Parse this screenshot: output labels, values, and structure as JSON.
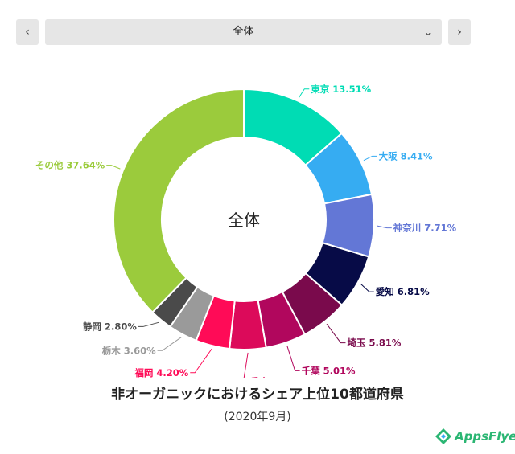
{
  "nav": {
    "prev_icon": "chevron-left-icon",
    "next_icon": "chevron-right-icon",
    "prev_glyph": "‹",
    "next_glyph": "›",
    "chevron_down_glyph": "⌄",
    "selected": "全体"
  },
  "chart_data": {
    "type": "pie",
    "donut": true,
    "center_label": "全体",
    "title": "非オーガニックにおけるシェア上位10都道府県",
    "subtitle": "(2020年9月)",
    "slices": [
      {
        "label": "東京",
        "value": 13.51,
        "display": "東京 13.51%",
        "color": "#00dcb4"
      },
      {
        "label": "大阪",
        "value": 8.41,
        "display": "大阪 8.41%",
        "color": "#36acf2"
      },
      {
        "label": "神奈川",
        "value": 7.71,
        "display": "神奈川 7.71%",
        "color": "#6377d6"
      },
      {
        "label": "愛知",
        "value": 6.81,
        "display": "愛知 6.81%",
        "color": "#070b47"
      },
      {
        "label": "埼玉",
        "value": 5.81,
        "display": "埼玉 5.81%",
        "color": "#7a0a4c"
      },
      {
        "label": "千葉",
        "value": 5.01,
        "display": "千葉 5.01%",
        "color": "#b1075d"
      },
      {
        "label": "兵庫",
        "value": 4.5,
        "display": "兵庫 4.50%",
        "color": "#dc0a5a"
      },
      {
        "label": "福岡",
        "value": 4.2,
        "display": "福岡 4.20%",
        "color": "#ff0b57"
      },
      {
        "label": "栃木",
        "value": 3.6,
        "display": "栃木 3.60%",
        "color": "#9a9a9a"
      },
      {
        "label": "静岡",
        "value": 2.8,
        "display": "静岡 2.80%",
        "color": "#4a4a4a"
      },
      {
        "label": "その他",
        "value": 37.64,
        "display": "その他 37.64%",
        "color": "#9bcb3c"
      }
    ]
  },
  "logo": {
    "text": "AppsFlyer",
    "icon": "appsflyer-logo-icon",
    "color": "#2bb673"
  }
}
